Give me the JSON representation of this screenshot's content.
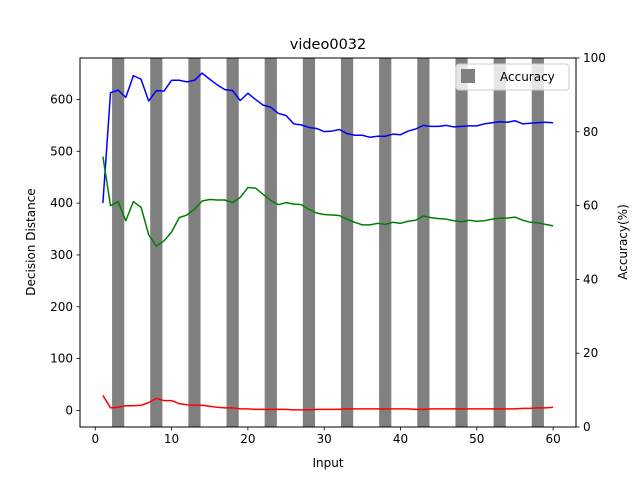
{
  "chart_data": {
    "type": "line",
    "title": "video0032",
    "xlabel": "Input",
    "ylabel": "Decision Distance",
    "y2label": "Accuracy(%)",
    "xlim": [
      -2,
      63
    ],
    "ylim": [
      -32,
      680
    ],
    "y2lim": [
      0,
      100
    ],
    "xticks": [
      0,
      10,
      20,
      30,
      40,
      50,
      60
    ],
    "yticks": [
      0,
      100,
      200,
      300,
      400,
      500,
      600
    ],
    "y2ticks": [
      0,
      20,
      40,
      60,
      80,
      100
    ],
    "grid": false,
    "legend": {
      "placement": "top-right",
      "entries": [
        "Accuracy"
      ]
    },
    "x": [
      1,
      2,
      3,
      4,
      5,
      6,
      7,
      8,
      9,
      10,
      11,
      12,
      13,
      14,
      15,
      16,
      17,
      18,
      19,
      20,
      21,
      22,
      23,
      24,
      25,
      26,
      27,
      28,
      29,
      30,
      31,
      32,
      33,
      34,
      35,
      36,
      37,
      38,
      39,
      40,
      41,
      42,
      43,
      44,
      45,
      46,
      47,
      48,
      49,
      50,
      51,
      52,
      53,
      54,
      55,
      56,
      57,
      58,
      59,
      60
    ],
    "series": [
      {
        "color": "#0000ff",
        "values": [
          400,
          613,
          618,
          604,
          646,
          639,
          597,
          617,
          616,
          637,
          637,
          634,
          637,
          651,
          639,
          628,
          619,
          617,
          598,
          612,
          600,
          589,
          585,
          573,
          569,
          553,
          551,
          546,
          544,
          538,
          539,
          542,
          534,
          531,
          531,
          527,
          529,
          529,
          533,
          532,
          539,
          543,
          550,
          548,
          548,
          550,
          547,
          548,
          549,
          549,
          553,
          555,
          557,
          556,
          559,
          553,
          554,
          555,
          556,
          555
        ]
      },
      {
        "color": "#008000",
        "values": [
          490,
          395,
          403,
          366,
          403,
          392,
          339,
          317,
          327,
          344,
          372,
          377,
          388,
          404,
          407,
          406,
          406,
          401,
          411,
          430,
          429,
          417,
          405,
          397,
          401,
          398,
          397,
          388,
          381,
          378,
          377,
          376,
          369,
          363,
          358,
          358,
          361,
          359,
          363,
          361,
          365,
          367,
          375,
          372,
          370,
          369,
          366,
          364,
          367,
          365,
          366,
          369,
          371,
          371,
          373,
          367,
          363,
          362,
          359,
          356
        ]
      },
      {
        "color": "#ff0000",
        "values": [
          29,
          5,
          6,
          9,
          9,
          10,
          15,
          23,
          19,
          19,
          13,
          11,
          10,
          10,
          8,
          6,
          5,
          5,
          3,
          3,
          2,
          2,
          2,
          2,
          2,
          1,
          1,
          1,
          2,
          2,
          2,
          2,
          3,
          3,
          3,
          3,
          3,
          3,
          3,
          3,
          3,
          2,
          2,
          3,
          3,
          3,
          3,
          3,
          3,
          3,
          3,
          3,
          3,
          3,
          3,
          4,
          4,
          5,
          5,
          6
        ]
      }
    ],
    "accuracy": {
      "name": "Accuracy",
      "color": "#808080",
      "x": [
        3,
        8,
        13,
        18,
        23,
        28,
        33,
        38,
        43,
        48,
        53,
        58
      ],
      "values": [
        100,
        100,
        100,
        100,
        100,
        100,
        100,
        100,
        100,
        100,
        100,
        100
      ]
    }
  }
}
